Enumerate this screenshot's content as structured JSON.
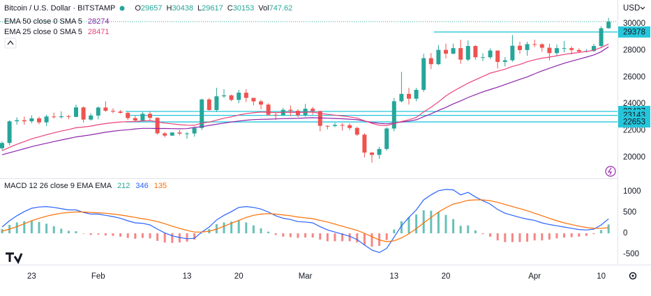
{
  "chart_data": [
    {
      "type": "candlestick",
      "title": "Bitcoin / U.S. Dollar · BITSTAMP",
      "currency": "USD",
      "ohlc_labels": [
        "O",
        "H",
        "L",
        "C",
        "Vol"
      ],
      "volume": 747.62,
      "up_color": "#26a69a",
      "down_color": "#ef5350",
      "level_color": "#26c6da",
      "categories": [
        null,
        null,
        null,
        null,
        "23",
        null,
        null,
        null,
        null,
        null,
        null,
        null,
        null,
        "Feb",
        null,
        null,
        null,
        null,
        null,
        null,
        null,
        null,
        null,
        null,
        null,
        "13",
        null,
        null,
        null,
        null,
        null,
        null,
        "20",
        null,
        null,
        null,
        null,
        null,
        null,
        null,
        null,
        "Mar",
        null,
        null,
        null,
        null,
        null,
        null,
        null,
        null,
        null,
        null,
        null,
        "13",
        null,
        null,
        null,
        null,
        null,
        null,
        "20",
        null,
        null,
        null,
        null,
        null,
        null,
        null,
        null,
        null,
        null,
        null,
        "Apr",
        null,
        null,
        null,
        null,
        null,
        null,
        null,
        null,
        "10",
        null
      ],
      "open": [
        20680,
        21080,
        22700,
        22780,
        22700,
        22920,
        22620,
        23060,
        23010,
        23080,
        23030,
        23740,
        22830,
        23130,
        23730,
        23490,
        23430,
        23330,
        22940,
        22760,
        23260,
        22960,
        21800,
        21630,
        21860,
        21780,
        21790,
        22200,
        24330,
        23540,
        24570,
        24640,
        24300,
        24840,
        24450,
        24190,
        23950,
        23190,
        23160,
        23560,
        23490,
        23150,
        23640,
        23470,
        22360,
        22350,
        22430,
        22410,
        22200,
        21700,
        20360,
        20190,
        20630,
        22160,
        24200,
        24750,
        24390,
        25050,
        27420,
        26970,
        28040,
        27760,
        28170,
        27310,
        28330,
        27490,
        27490,
        27990,
        27140,
        27260,
        28350,
        28030,
        28470,
        28460,
        28200,
        27800,
        28170,
        28170,
        28030,
        27910,
        27950,
        28330,
        29657
      ],
      "high": [
        21200,
        22780,
        23000,
        23050,
        23150,
        23050,
        23200,
        23350,
        23450,
        23180,
        23950,
        23800,
        23300,
        23800,
        24200,
        23680,
        23550,
        23420,
        23100,
        23400,
        23450,
        23000,
        21900,
        21900,
        22050,
        21900,
        22300,
        24400,
        24450,
        25200,
        25100,
        24700,
        25050,
        25100,
        24450,
        24300,
        24050,
        23350,
        23700,
        23880,
        23600,
        24000,
        23780,
        23480,
        22400,
        22600,
        22550,
        22550,
        22300,
        21800,
        20400,
        20800,
        22250,
        24450,
        26400,
        25200,
        25200,
        27750,
        27800,
        28400,
        28500,
        28500,
        28800,
        28750,
        28400,
        27800,
        28150,
        28000,
        27500,
        29150,
        28650,
        28650,
        28800,
        28550,
        28500,
        28450,
        28700,
        28300,
        28150,
        28100,
        28500,
        29800,
        30438
      ],
      "low": [
        20550,
        20900,
        22450,
        22450,
        22550,
        22480,
        22350,
        22900,
        22900,
        22870,
        23000,
        22600,
        22750,
        22850,
        23400,
        23300,
        23270,
        22800,
        22650,
        22750,
        22700,
        21700,
        21500,
        21600,
        21650,
        21400,
        21550,
        22050,
        23500,
        23400,
        24450,
        24200,
        24050,
        24150,
        23900,
        23600,
        23100,
        22800,
        23100,
        23100,
        23000,
        23050,
        23200,
        21950,
        22100,
        22250,
        22000,
        22050,
        21600,
        20000,
        19600,
        19900,
        20500,
        21950,
        24100,
        23950,
        24200,
        24900,
        26600,
        26900,
        27400,
        27700,
        27000,
        27200,
        27300,
        27200,
        27350,
        26650,
        26800,
        27150,
        27750,
        27600,
        28250,
        27900,
        27250,
        27600,
        27850,
        27700,
        27800,
        27850,
        27900,
        28200,
        29617
      ],
      "close": [
        21080,
        22700,
        22780,
        22700,
        22920,
        22620,
        23060,
        23010,
        23080,
        23030,
        23740,
        22830,
        23130,
        23730,
        23490,
        23430,
        23330,
        22940,
        22760,
        23260,
        22960,
        21800,
        21630,
        21860,
        21780,
        21790,
        22200,
        24330,
        23540,
        24570,
        24640,
        24300,
        24840,
        24450,
        24190,
        23950,
        23190,
        23160,
        23560,
        23490,
        23150,
        23640,
        23470,
        22360,
        22350,
        22430,
        22410,
        22200,
        21700,
        20360,
        20190,
        20630,
        22160,
        24200,
        24750,
        24390,
        25050,
        27420,
        26970,
        28040,
        27760,
        28170,
        27310,
        28330,
        27490,
        27490,
        27990,
        27140,
        27260,
        28350,
        28030,
        28470,
        28460,
        28200,
        27800,
        28170,
        28170,
        28030,
        27910,
        27950,
        28330,
        29657,
        30153
      ],
      "series": [
        {
          "name": "EMA 50 close 0 SMA 5",
          "color": "#8e24aa",
          "values": [
            20200,
            20350,
            20500,
            20650,
            20800,
            20930,
            21060,
            21180,
            21300,
            21410,
            21530,
            21610,
            21690,
            21790,
            21880,
            21960,
            22020,
            22070,
            22130,
            22170,
            22170,
            22160,
            22160,
            22150,
            22140,
            22150,
            22240,
            22300,
            22390,
            22480,
            22560,
            22650,
            22720,
            22780,
            22830,
            22850,
            22860,
            22880,
            22900,
            22910,
            22920,
            22950,
            22970,
            22950,
            22930,
            22910,
            22890,
            22860,
            22820,
            22720,
            22620,
            22540,
            22510,
            22560,
            22650,
            22720,
            22810,
            23040,
            23260,
            23510,
            23740,
            24000,
            24230,
            24480,
            24690,
            24900,
            25080,
            25250,
            25450,
            25640,
            25840,
            26020,
            26250,
            26470,
            26660,
            26860,
            27040,
            27200,
            27350,
            27500,
            27660,
            27900,
            28274
          ]
        },
        {
          "name": "EMA 25 close 0 SMA 5",
          "color": "#ec407a",
          "values": [
            20500,
            20750,
            20980,
            21180,
            21390,
            21540,
            21700,
            21840,
            21970,
            22080,
            22220,
            22270,
            22340,
            22450,
            22530,
            22600,
            22650,
            22670,
            22680,
            22730,
            22750,
            22660,
            22560,
            22510,
            22450,
            22410,
            22400,
            22560,
            22640,
            22790,
            22930,
            23030,
            23170,
            23270,
            23340,
            23390,
            23370,
            23350,
            23370,
            23380,
            23360,
            23380,
            23390,
            23300,
            23220,
            23160,
            23100,
            23030,
            22930,
            22740,
            22550,
            22400,
            22380,
            22520,
            22690,
            22820,
            22990,
            23400,
            23750,
            24150,
            24600,
            24950,
            25250,
            25550,
            25800,
            26050,
            26300,
            26450,
            26600,
            26800,
            26950,
            27150,
            27300,
            27420,
            27500,
            27600,
            27700,
            27780,
            27850,
            27920,
            28010,
            28220,
            28471
          ]
        }
      ],
      "levels": [
        29378,
        23437,
        23143,
        22653
      ],
      "ylim": [
        18490,
        31770
      ],
      "yticks": [
        20000,
        22000,
        24000,
        26000,
        28000,
        30000
      ],
      "grid": false
    },
    {
      "type": "macd",
      "title": "MACD 12 26 close 9 EMA EMA",
      "ylim": [
        -750,
        1283
      ],
      "yticks": [
        -500,
        0,
        500,
        1000
      ],
      "series": [
        {
          "name": "Histogram",
          "kind": "histogram",
          "up_color": "#26a69a",
          "down_color": "#ef5350",
          "values": [
            100,
            200,
            260,
            290,
            300,
            270,
            230,
            170,
            110,
            60,
            50,
            -10,
            -40,
            -30,
            -50,
            -60,
            -80,
            -110,
            -130,
            -110,
            -120,
            -180,
            -220,
            -230,
            -220,
            -200,
            -150,
            0,
            100,
            220,
            260,
            280,
            310,
            260,
            190,
            120,
            40,
            -40,
            -80,
            -90,
            -110,
            -100,
            -100,
            -150,
            -190,
            -190,
            -190,
            -190,
            -220,
            -280,
            -320,
            -300,
            -160,
            90,
            290,
            390,
            450,
            550,
            540,
            510,
            440,
            340,
            180,
            190,
            70,
            -20,
            -80,
            -170,
            -210,
            -210,
            -210,
            -200,
            -170,
            -170,
            -150,
            -120,
            -100,
            -90,
            -80,
            -60,
            -20,
            80,
            212
          ]
        },
        {
          "name": "MACD",
          "kind": "line",
          "color": "#2962ff",
          "values": [
            150,
            300,
            420,
            520,
            600,
            630,
            640,
            620,
            590,
            560,
            560,
            500,
            460,
            460,
            430,
            400,
            360,
            300,
            250,
            240,
            200,
            100,
            10,
            -60,
            -100,
            -130,
            -120,
            30,
            150,
            320,
            430,
            520,
            620,
            640,
            620,
            580,
            510,
            420,
            360,
            330,
            280,
            270,
            250,
            160,
            80,
            30,
            -20,
            -70,
            -150,
            -280,
            -400,
            -460,
            -360,
            -90,
            180,
            380,
            560,
            800,
            920,
            1020,
            1050,
            1040,
            920,
            980,
            870,
            780,
            700,
            570,
            480,
            430,
            380,
            340,
            310,
            250,
            210,
            180,
            150,
            120,
            90,
            80,
            100,
            200,
            346
          ]
        },
        {
          "name": "Signal",
          "kind": "line",
          "color": "#ff6d00",
          "values": [
            50,
            100,
            160,
            230,
            300,
            360,
            410,
            450,
            480,
            500,
            510,
            510,
            500,
            490,
            480,
            460,
            440,
            410,
            380,
            350,
            320,
            280,
            230,
            170,
            120,
            70,
            30,
            30,
            50,
            100,
            170,
            240,
            310,
            380,
            430,
            460,
            470,
            460,
            440,
            420,
            390,
            370,
            350,
            310,
            270,
            220,
            170,
            120,
            70,
            0,
            -80,
            -160,
            -200,
            -180,
            -110,
            -10,
            110,
            250,
            380,
            510,
            610,
            700,
            740,
            790,
            800,
            800,
            780,
            740,
            690,
            640,
            590,
            540,
            480,
            420,
            360,
            300,
            250,
            210,
            170,
            140,
            120,
            120,
            135
          ]
        }
      ]
    }
  ]
}
